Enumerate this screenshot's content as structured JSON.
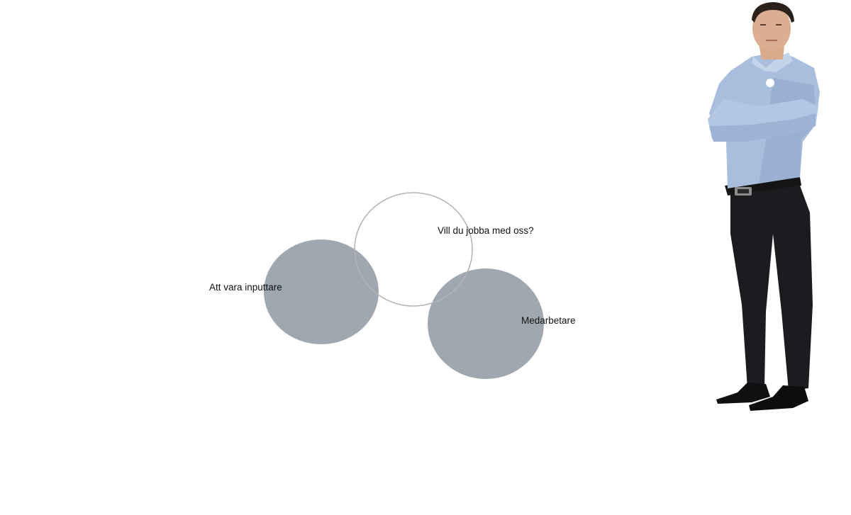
{
  "diagram": {
    "labels": {
      "inputtare": "Att vara inputtare",
      "question": "Vill du jobba med oss?",
      "medarbetare": "Medarbetare"
    },
    "colors": {
      "filled_circle": "#9fa8b0",
      "outline_circle": "#b4b4b4",
      "background": "#ffffff"
    }
  },
  "person": {
    "description_icon": "standing-businessman-photo"
  }
}
